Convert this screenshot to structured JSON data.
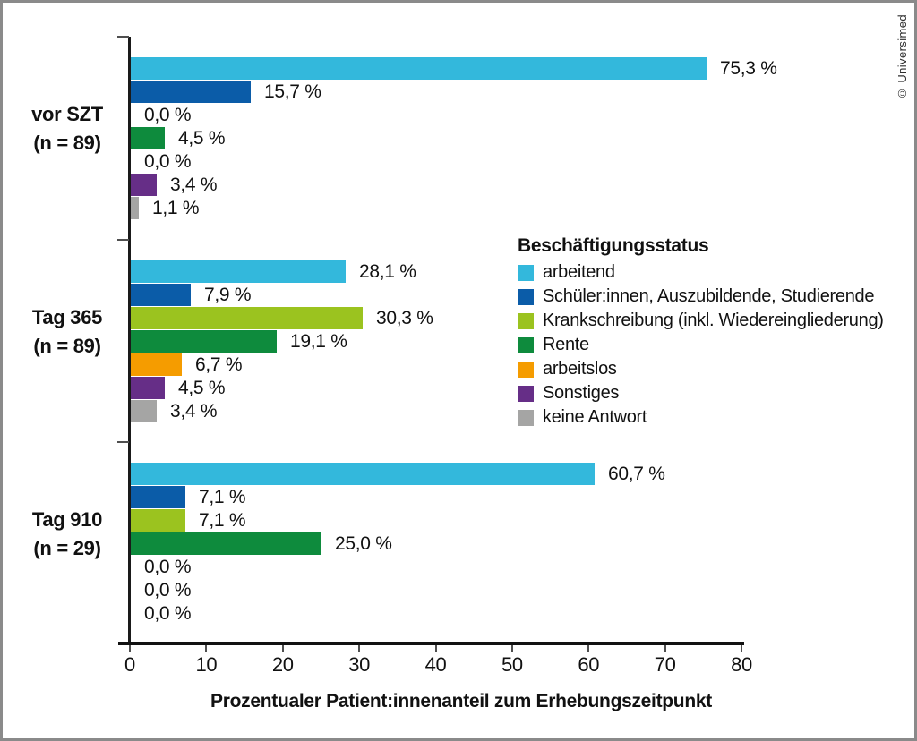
{
  "copyright": "© Universimed",
  "legend": {
    "title": "Beschäftigungsstatus",
    "items": [
      {
        "label": "arbeitend",
        "color": "#33b8dc"
      },
      {
        "label": "Schüler:innen, Auszubildende, Studierende",
        "color": "#0b5ca8"
      },
      {
        "label": "Krankschreibung (inkl. Wiedereingliederung)",
        "color": "#9bc31f"
      },
      {
        "label": "Rente",
        "color": "#0e8b3d"
      },
      {
        "label": "arbeitslos",
        "color": "#f59c00"
      },
      {
        "label": "Sonstiges",
        "color": "#662e87"
      },
      {
        "label": "keine Antwort",
        "color": "#a5a5a4"
      }
    ]
  },
  "chart_data": {
    "type": "bar",
    "orientation": "horizontal",
    "title": "",
    "xlabel": "Prozentualer Patient:innenanteil zum Erhebungszeitpunkt",
    "ylabel": "",
    "xlim": [
      0,
      80
    ],
    "x_ticks": [
      "0",
      "10",
      "20",
      "30",
      "40",
      "50",
      "60",
      "70",
      "80"
    ],
    "grid": false,
    "legend_title": "Beschäftigungsstatus",
    "legend_position": "center-right",
    "series_names": [
      "arbeitend",
      "Schüler:innen, Auszubildende, Studierende",
      "Krankschreibung (inkl. Wiedereingliederung)",
      "Rente",
      "arbeitslos",
      "Sonstiges",
      "keine Antwort"
    ],
    "groups": [
      {
        "label": "vor SZT",
        "sublabel": "(n = 89)",
        "values": [
          75.3,
          15.7,
          0.0,
          4.5,
          0.0,
          3.4,
          1.1
        ],
        "value_labels": [
          "75,3 %",
          "15,7 %",
          "0,0 %",
          "4,5 %",
          "0,0 %",
          "3,4 %",
          "1,1 %"
        ]
      },
      {
        "label": "Tag 365",
        "sublabel": "(n = 89)",
        "values": [
          28.1,
          7.9,
          30.3,
          19.1,
          6.7,
          4.5,
          3.4
        ],
        "value_labels": [
          "28,1 %",
          "7,9 %",
          "30,3 %",
          "19,1 %",
          "6,7 %",
          "4,5 %",
          "3,4 %"
        ]
      },
      {
        "label": "Tag 910",
        "sublabel": "(n = 29)",
        "values": [
          60.7,
          7.1,
          7.1,
          25.0,
          0.0,
          0.0,
          0.0
        ],
        "value_labels": [
          "60,7 %",
          "7,1 %",
          "7,1 %",
          "25,0 %",
          "0,0 %",
          "0,0 %",
          "0,0 %"
        ]
      }
    ]
  }
}
